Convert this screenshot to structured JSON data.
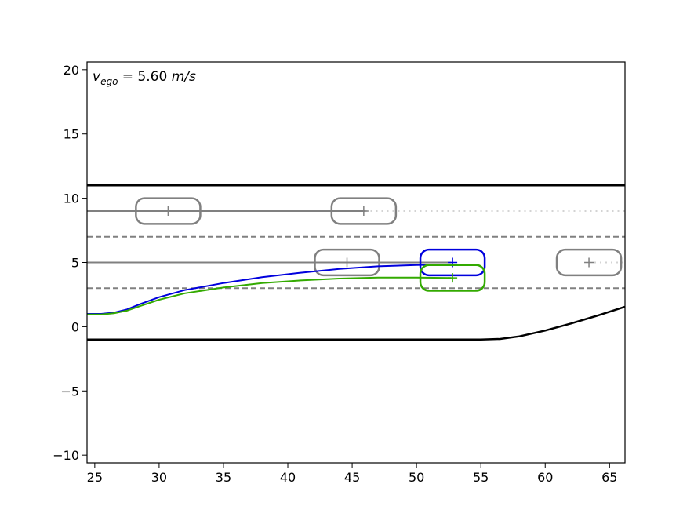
{
  "chart_data": {
    "type": "line",
    "title": "",
    "xlabel": "",
    "ylabel": "",
    "xlim": [
      24.4,
      66.2
    ],
    "ylim": [
      -10.6,
      20.6
    ],
    "grid": false,
    "legend": "none",
    "x_ticks": [
      25,
      30,
      35,
      40,
      45,
      50,
      55,
      60,
      65
    ],
    "y_ticks": [
      -10,
      -5,
      0,
      5,
      10,
      15,
      20
    ],
    "annotation": {
      "symbol": "v",
      "subscript": "ego",
      "text": " = 5.60 ",
      "unit": "m/s"
    },
    "road_boundaries": [
      {
        "name": "upper-boundary",
        "color": "#000000",
        "points": [
          [
            24.4,
            11
          ],
          [
            66.2,
            11
          ]
        ]
      },
      {
        "name": "lower-boundary",
        "color": "#000000",
        "points": [
          [
            24.4,
            -1
          ],
          [
            55,
            -1
          ],
          [
            56.5,
            -0.95
          ],
          [
            58,
            -0.75
          ],
          [
            60,
            -0.3
          ],
          [
            62,
            0.25
          ],
          [
            64,
            0.85
          ],
          [
            66.2,
            1.55
          ]
        ]
      }
    ],
    "lane_markings": [
      {
        "y": 7,
        "color": "#808080",
        "style": "dashed"
      },
      {
        "y": 3,
        "color": "#808080",
        "style": "dashed"
      }
    ],
    "other_vehicles": [
      {
        "center": [
          30.7,
          9
        ],
        "length": 5,
        "width": 2,
        "color": "#808080",
        "path_solid": [
          [
            24.4,
            9
          ],
          [
            46,
            9
          ]
        ],
        "path_dotted": [
          [
            46,
            9
          ],
          [
            66.2,
            9
          ]
        ]
      },
      {
        "center": [
          45.9,
          9
        ],
        "length": 5,
        "width": 2,
        "color": "#808080",
        "path_solid": [],
        "path_dotted": []
      },
      {
        "center": [
          44.6,
          5
        ],
        "length": 5,
        "width": 2,
        "color": "#808080",
        "path_solid": [
          [
            24.4,
            5
          ],
          [
            52.7,
            5
          ]
        ],
        "path_dotted": []
      },
      {
        "center": [
          63.4,
          5
        ],
        "length": 5,
        "width": 2,
        "color": "#808080",
        "path_solid": [],
        "path_dotted": [
          [
            63.4,
            5
          ],
          [
            66.2,
            5
          ]
        ]
      }
    ],
    "ego_trajectories": [
      {
        "name": "planned",
        "color": "#0000dd",
        "points": [
          [
            24.4,
            1
          ],
          [
            25.5,
            1
          ],
          [
            26.5,
            1.1
          ],
          [
            27.5,
            1.35
          ],
          [
            28.5,
            1.75
          ],
          [
            30,
            2.3
          ],
          [
            32,
            2.85
          ],
          [
            35,
            3.4
          ],
          [
            38,
            3.85
          ],
          [
            41,
            4.2
          ],
          [
            44,
            4.5
          ],
          [
            47,
            4.7
          ],
          [
            50,
            4.8
          ],
          [
            52.7,
            4.85
          ]
        ],
        "vehicle": {
          "center": [
            52.8,
            5
          ],
          "length": 5,
          "width": 2
        }
      },
      {
        "name": "actual",
        "color": "#33aa00",
        "points": [
          [
            24.4,
            0.95
          ],
          [
            25.5,
            0.95
          ],
          [
            26.5,
            1.05
          ],
          [
            27.5,
            1.25
          ],
          [
            28.5,
            1.6
          ],
          [
            30,
            2.1
          ],
          [
            32,
            2.6
          ],
          [
            35,
            3.05
          ],
          [
            38,
            3.4
          ],
          [
            41,
            3.6
          ],
          [
            44,
            3.75
          ],
          [
            47,
            3.82
          ],
          [
            50,
            3.82
          ],
          [
            52.7,
            3.8
          ]
        ],
        "vehicle": {
          "center": [
            52.8,
            3.8
          ],
          "length": 5,
          "width": 2
        }
      }
    ]
  }
}
